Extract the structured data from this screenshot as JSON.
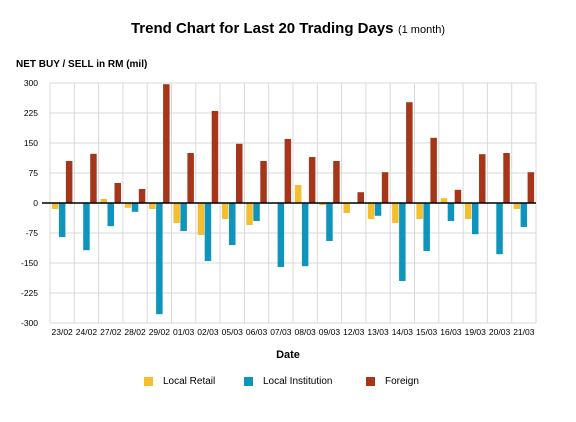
{
  "colors": {
    "retail": "#F5BE2E",
    "institution": "#0F95BC",
    "foreign": "#A5361A"
  },
  "chart_data": {
    "type": "bar",
    "title": "Trend Chart for Last 20 Trading Days",
    "subtitle": "(1 month)",
    "ylabel": "NET BUY / SELL in RM (mil)",
    "xlabel": "Date",
    "ylim": [
      -300,
      300
    ],
    "yticks": [
      "300",
      "225",
      "150",
      "75",
      "0",
      "-75",
      "-150",
      "-225",
      "-300"
    ],
    "categories": [
      "23/02",
      "24/02",
      "27/02",
      "28/02",
      "29/02",
      "01/03",
      "02/03",
      "05/03",
      "06/03",
      "07/03",
      "08/03",
      "09/03",
      "12/03",
      "13/03",
      "14/03",
      "15/03",
      "16/03",
      "19/03",
      "20/03",
      "21/03"
    ],
    "series": [
      {
        "name": "Local Retail",
        "color": "#F5BE2E",
        "values": [
          -15,
          0,
          10,
          -12,
          -15,
          -50,
          -80,
          -40,
          -55,
          0,
          45,
          -5,
          -25,
          -40,
          -50,
          -40,
          12,
          -40,
          0,
          -15
        ]
      },
      {
        "name": "Local Institution",
        "color": "#0F95BC",
        "values": [
          -85,
          -118,
          -58,
          -22,
          -278,
          -70,
          -145,
          -105,
          -45,
          -160,
          -158,
          -95,
          0,
          -32,
          -195,
          -120,
          -45,
          -78,
          -128,
          -60
        ]
      },
      {
        "name": "Foreign",
        "color": "#A5361A",
        "values": [
          105,
          123,
          50,
          35,
          297,
          125,
          230,
          148,
          105,
          160,
          115,
          105,
          27,
          77,
          252,
          163,
          33,
          122,
          125,
          77
        ]
      }
    ],
    "grid": true,
    "legend": "bottom"
  }
}
